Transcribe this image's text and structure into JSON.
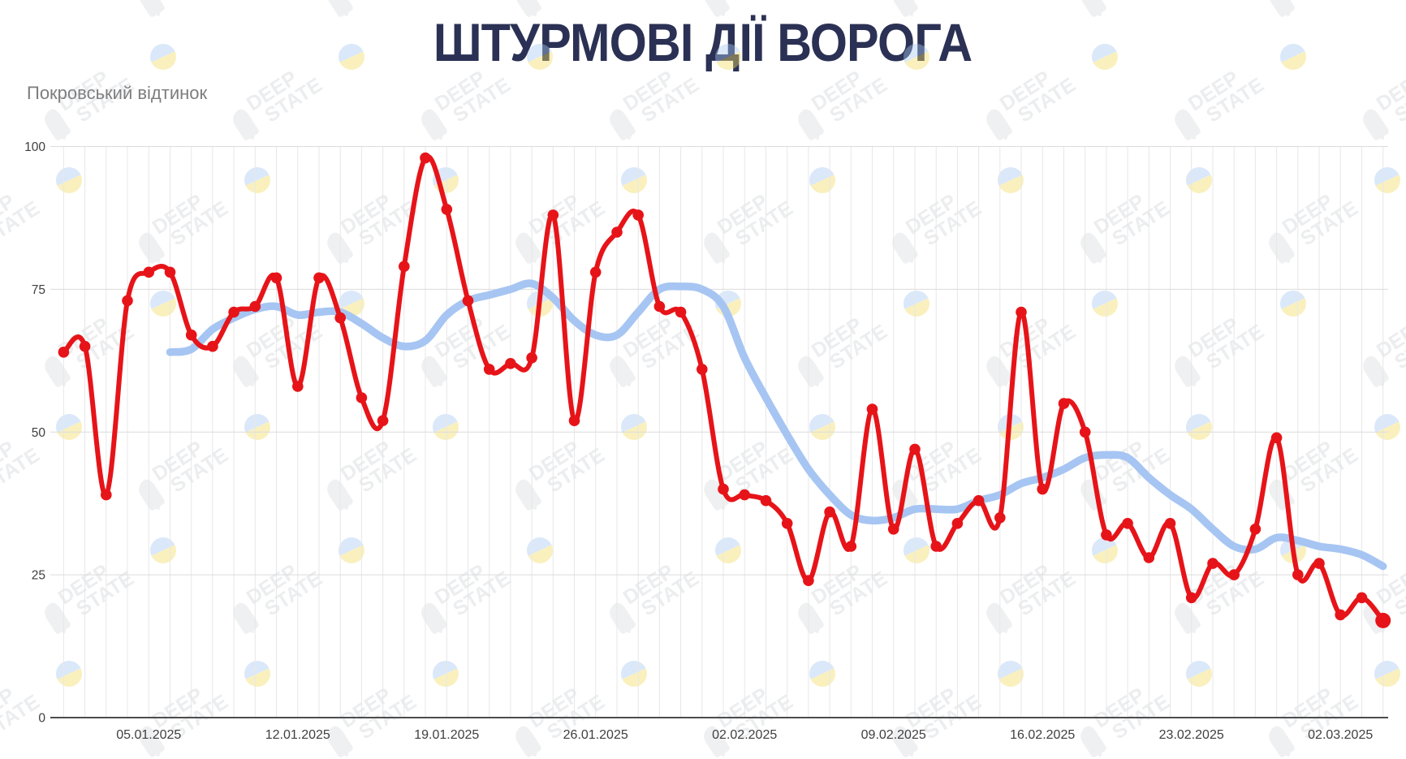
{
  "title": "ШТУРМОВІ ДІЇ ВОРОГА",
  "subtitle": "Покровський відтинок",
  "watermark": {
    "line1": "DEEP",
    "line2": "STATE"
  },
  "colors": {
    "title": "#2b3154",
    "subtitle": "#7d7d7d",
    "daily_line": "#e61419",
    "average_line": "#a6c5f2",
    "tick_text": "#3f3f3f",
    "grid_vertical": "#e7e7e7",
    "grid_horizontal": "#dcdcdc",
    "axis_line": "#4d4d4d",
    "watermark_gray": "#9aa2ab",
    "flag_blue": "#a9c9f4",
    "flag_yellow": "#f3dd66"
  },
  "chart_data": {
    "type": "line",
    "title": "ШТУРМОВІ ДІЇ ВОРОГА",
    "subtitle": "Покровський відтинок",
    "xlabel": "",
    "ylabel": "",
    "ylim": [
      0,
      100
    ],
    "y_ticks": [
      0,
      25,
      50,
      75,
      100
    ],
    "grid": "vertical line per day; horizontal lines at 25/50/75/100",
    "legend": "none",
    "x_tick_labels": [
      "05.01.2025",
      "12.01.2025",
      "19.01.2025",
      "26.01.2025",
      "02.02.2025",
      "09.02.2025",
      "16.02.2025",
      "23.02.2025",
      "02.03.2025"
    ],
    "x_tick_day_indices": [
      4,
      11,
      18,
      25,
      32,
      39,
      46,
      53,
      60
    ],
    "dates": [
      "01.01.2025",
      "02.01.2025",
      "03.01.2025",
      "04.01.2025",
      "05.01.2025",
      "06.01.2025",
      "07.01.2025",
      "08.01.2025",
      "09.01.2025",
      "10.01.2025",
      "11.01.2025",
      "12.01.2025",
      "13.01.2025",
      "14.01.2025",
      "15.01.2025",
      "16.01.2025",
      "17.01.2025",
      "18.01.2025",
      "19.01.2025",
      "20.01.2025",
      "21.01.2025",
      "22.01.2025",
      "23.01.2025",
      "24.01.2025",
      "25.01.2025",
      "26.01.2025",
      "27.01.2025",
      "28.01.2025",
      "29.01.2025",
      "30.01.2025",
      "31.01.2025",
      "01.02.2025",
      "02.02.2025",
      "03.02.2025",
      "04.02.2025",
      "05.02.2025",
      "06.02.2025",
      "07.02.2025",
      "08.02.2025",
      "09.02.2025",
      "10.02.2025",
      "11.02.2025",
      "12.02.2025",
      "13.02.2025",
      "14.02.2025",
      "15.02.2025",
      "16.02.2025",
      "17.02.2025",
      "18.02.2025",
      "19.02.2025",
      "20.02.2025",
      "21.02.2025",
      "22.02.2025",
      "23.02.2025",
      "24.02.2025",
      "25.02.2025",
      "26.02.2025",
      "27.02.2025",
      "28.02.2025",
      "01.03.2025",
      "02.03.2025",
      "03.03.2025",
      "04.03.2025"
    ],
    "series": [
      {
        "name": "daily assaults",
        "color": "#e61419",
        "markers": true,
        "start_index": 0,
        "values": [
          64,
          65,
          39,
          73,
          78,
          78,
          67,
          65,
          71,
          72,
          77,
          58,
          77,
          70,
          56,
          52,
          79,
          98,
          89,
          73,
          61,
          62,
          63,
          88,
          52,
          78,
          85,
          88,
          72,
          71,
          61,
          40,
          39,
          38,
          34,
          24,
          36,
          30,
          54,
          33,
          47,
          30,
          34,
          38,
          35,
          71,
          40,
          55,
          50,
          32,
          34,
          28,
          34,
          21,
          27,
          25,
          33,
          49,
          25,
          27,
          18,
          21,
          17
        ]
      },
      {
        "name": "7-day smoothed average",
        "color": "#a6c5f2",
        "markers": false,
        "start_index": 5,
        "values": [
          64,
          64.5,
          68,
          70,
          71.5,
          72,
          70.5,
          71,
          71,
          69,
          66.5,
          65,
          66,
          70.5,
          73,
          74,
          75,
          76,
          73.5,
          69.5,
          67,
          67,
          71,
          75,
          75.5,
          75,
          72,
          63,
          56,
          49.5,
          43.5,
          39,
          35.5,
          34.5,
          35,
          36.5,
          36.5,
          36.5,
          38,
          39,
          41,
          42,
          43.5,
          45.5,
          46,
          45.5,
          42,
          39,
          36.5,
          33,
          30,
          29.5,
          31.5,
          31,
          30,
          29.5,
          28.5,
          26.5
        ]
      }
    ]
  }
}
